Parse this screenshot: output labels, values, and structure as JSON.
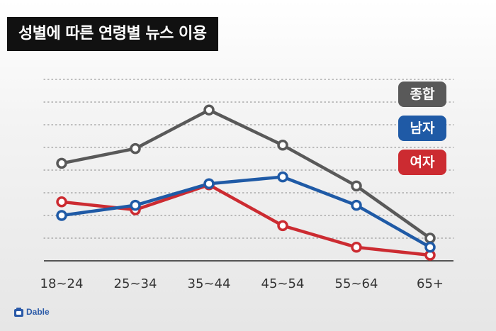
{
  "title": "성별에 따른 연령별 뉴스 이용",
  "brand": "Dable",
  "colors": {
    "종합": "#595959",
    "남자": "#1f5aa6",
    "여자": "#cc2b31"
  },
  "chart_data": {
    "type": "line",
    "title": "성별에 따른 연령별 뉴스 이용",
    "categories": [
      "18~24",
      "25~34",
      "35~44",
      "45~54",
      "55~64",
      "65+"
    ],
    "ylim": [
      0,
      8
    ],
    "grid": true,
    "legend_position": "right",
    "series": [
      {
        "name": "종합",
        "color": "#595959",
        "values": [
          4.3,
          4.95,
          6.65,
          5.1,
          3.3,
          1.0
        ]
      },
      {
        "name": "남자",
        "color": "#1f5aa6",
        "values": [
          2.0,
          2.45,
          3.4,
          3.7,
          2.45,
          0.6
        ]
      },
      {
        "name": "여자",
        "color": "#cc2b31",
        "values": [
          2.6,
          2.25,
          3.35,
          1.55,
          0.6,
          0.25
        ]
      }
    ]
  }
}
